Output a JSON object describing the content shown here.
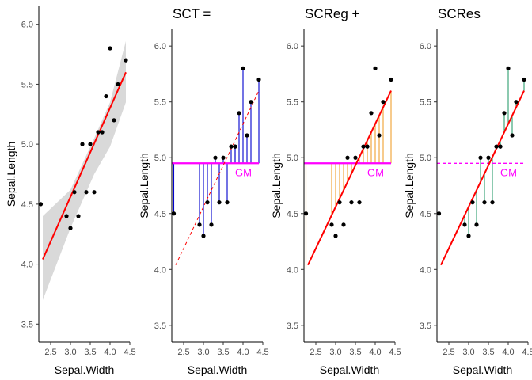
{
  "chart_data": [
    {
      "type": "scatter",
      "title": "",
      "xlabel": "Sepal.Width",
      "ylabel": "Sepal.Length",
      "xlim": [
        2.2,
        4.5
      ],
      "ylim": [
        3.35,
        6.15
      ],
      "x_ticks": [
        "2.5",
        "3.0",
        "3.5",
        "4.0",
        "4.5"
      ],
      "y_ticks": [
        "3.5",
        "4.0",
        "4.5",
        "5.0",
        "5.5",
        "6.0"
      ],
      "points": {
        "x": [
          2.25,
          2.9,
          3.0,
          3.1,
          3.2,
          3.3,
          3.4,
          3.5,
          3.6,
          3.7,
          3.8,
          3.8,
          3.9,
          4.0,
          4.1,
          4.2,
          4.4
        ],
        "y": [
          4.5,
          4.4,
          4.3,
          4.6,
          4.4,
          5.0,
          4.6,
          5.0,
          4.6,
          5.1,
          5.1,
          5.1,
          5.4,
          5.8,
          5.2,
          5.5,
          5.7
        ]
      },
      "fit_line": {
        "x": [
          2.3,
          4.4
        ],
        "y": [
          4.04,
          5.6
        ],
        "color": "#ff0000"
      },
      "confidence_band": {
        "x": [
          2.3,
          3.0,
          3.6,
          4.0,
          4.4
        ],
        "lower": [
          3.7,
          4.3,
          4.75,
          4.98,
          5.35
        ],
        "upper": [
          4.4,
          4.62,
          5.05,
          5.35,
          5.86
        ],
        "color": "#d9d9d9"
      }
    },
    {
      "type": "scatter",
      "title": "SCT =",
      "xlabel": "Sepal.Width",
      "ylabel": "Sepal.Length",
      "xlim": [
        2.2,
        4.5
      ],
      "ylim": [
        3.35,
        6.15
      ],
      "x_ticks": [
        "2.5",
        "3.0",
        "3.5",
        "4.0",
        "4.5"
      ],
      "y_ticks": [
        "3.5",
        "4.0",
        "4.5",
        "5.0",
        "5.5",
        "6.0"
      ],
      "points": {
        "x": [
          2.25,
          2.9,
          3.0,
          3.1,
          3.2,
          3.3,
          3.4,
          3.5,
          3.6,
          3.7,
          3.8,
          3.8,
          3.9,
          4.0,
          4.1,
          4.2,
          4.4
        ],
        "y": [
          4.5,
          4.4,
          4.3,
          4.6,
          4.4,
          5.0,
          4.6,
          5.0,
          4.6,
          5.1,
          5.1,
          5.1,
          5.4,
          5.8,
          5.2,
          5.5,
          5.7
        ]
      },
      "mean_line": {
        "y": 4.95,
        "label": "GM",
        "color": "#ff00ff"
      },
      "segments": {
        "to": "mean",
        "color": "#0000cd"
      },
      "fit_line": {
        "x": [
          2.3,
          4.4
        ],
        "y": [
          4.04,
          5.6
        ],
        "color": "#ff0000",
        "style": "dashed"
      }
    },
    {
      "type": "scatter",
      "title": "SCReg +",
      "xlabel": "Sepal.Width",
      "ylabel": "Sepal.Length",
      "xlim": [
        2.2,
        4.5
      ],
      "ylim": [
        3.35,
        6.15
      ],
      "x_ticks": [
        "2.5",
        "3.0",
        "3.5",
        "4.0",
        "4.5"
      ],
      "y_ticks": [
        "3.5",
        "4.0",
        "4.5",
        "5.0",
        "5.5",
        "6.0"
      ],
      "points": {
        "x": [
          2.25,
          2.9,
          3.0,
          3.1,
          3.2,
          3.3,
          3.4,
          3.5,
          3.6,
          3.7,
          3.8,
          3.8,
          3.9,
          4.0,
          4.1,
          4.2,
          4.4
        ],
        "y": [
          4.5,
          4.4,
          4.3,
          4.6,
          4.4,
          5.0,
          4.6,
          5.0,
          4.6,
          5.1,
          5.1,
          5.1,
          5.4,
          5.8,
          5.2,
          5.5,
          5.7
        ]
      },
      "mean_line": {
        "y": 4.95,
        "label": "GM",
        "color": "#ff00ff"
      },
      "segments": {
        "from": "mean",
        "to": "fit",
        "color": "#f0a030"
      },
      "fit_line": {
        "x": [
          2.3,
          4.4
        ],
        "y": [
          4.04,
          5.6
        ],
        "color": "#ff0000"
      }
    },
    {
      "type": "scatter",
      "title": "SCRes",
      "xlabel": "Sepal.Width",
      "ylabel": "Sepal.Length",
      "xlim": [
        2.2,
        4.5
      ],
      "ylim": [
        3.35,
        6.15
      ],
      "x_ticks": [
        "2.5",
        "3.0",
        "3.5",
        "4.0",
        "4.5"
      ],
      "y_ticks": [
        "3.5",
        "4.0",
        "4.5",
        "5.0",
        "5.5",
        "6.0"
      ],
      "points": {
        "x": [
          2.25,
          2.9,
          3.0,
          3.1,
          3.2,
          3.3,
          3.4,
          3.5,
          3.6,
          3.7,
          3.8,
          3.8,
          3.9,
          4.0,
          4.1,
          4.2,
          4.4
        ],
        "y": [
          4.5,
          4.4,
          4.3,
          4.6,
          4.4,
          5.0,
          4.6,
          5.0,
          4.6,
          5.1,
          5.1,
          5.1,
          5.4,
          5.8,
          5.2,
          5.5,
          5.7
        ]
      },
      "mean_line": {
        "y": 4.95,
        "label": "GM",
        "color": "#ff00ff",
        "style": "dashed"
      },
      "segments": {
        "to": "fit",
        "color": "#2e9e6e"
      },
      "fit_line": {
        "x": [
          2.3,
          4.4
        ],
        "y": [
          4.04,
          5.6
        ],
        "color": "#ff0000"
      }
    }
  ]
}
